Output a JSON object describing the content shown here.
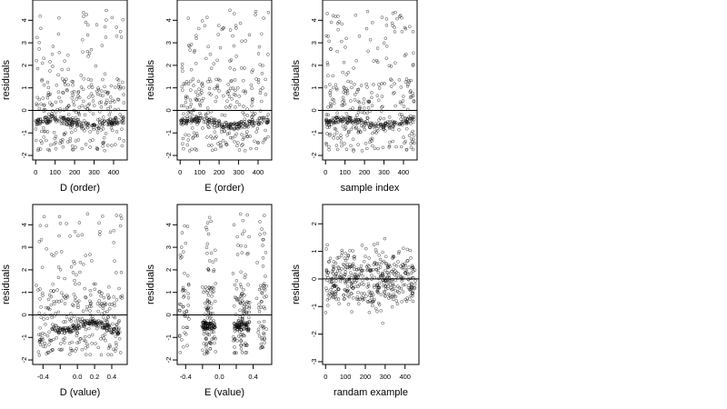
{
  "colors": {
    "point": "#000000",
    "axis": "#000000",
    "background": "#ffffff"
  },
  "chart_data": [
    {
      "type": "scatter",
      "xlabel": "D (order)",
      "ylabel": "residuals",
      "xlim": [
        -15,
        470
      ],
      "ylim": [
        -2.2,
        4.9
      ],
      "xticks": [
        0,
        100,
        200,
        300,
        400
      ],
      "xtick_labels": [
        "0",
        "100",
        "200",
        "300",
        "400"
      ],
      "yticks": [
        -2,
        -1,
        0,
        1,
        2,
        3,
        4
      ],
      "ytick_labels": [
        "-2",
        "-1",
        "0",
        "1",
        "2",
        "3",
        "4"
      ],
      "hline": 0,
      "grid": false,
      "legend": "none",
      "pattern": "order"
    },
    {
      "type": "scatter",
      "xlabel": "E (order)",
      "ylabel": "residuals",
      "xlim": [
        -15,
        470
      ],
      "ylim": [
        -2.2,
        4.9
      ],
      "xticks": [
        0,
        100,
        200,
        300,
        400
      ],
      "xtick_labels": [
        "0",
        "100",
        "200",
        "300",
        "400"
      ],
      "yticks": [
        -2,
        -1,
        0,
        1,
        2,
        3,
        4
      ],
      "ytick_labels": [
        "-2",
        "-1",
        "0",
        "1",
        "2",
        "3",
        "4"
      ],
      "hline": 0,
      "grid": false,
      "legend": "none",
      "pattern": "order"
    },
    {
      "type": "scatter",
      "xlabel": "sample index",
      "ylabel": "residuals",
      "xlim": [
        -15,
        470
      ],
      "ylim": [
        -2.2,
        4.9
      ],
      "xticks": [
        0,
        100,
        200,
        300,
        400
      ],
      "xtick_labels": [
        "0",
        "100",
        "200",
        "300",
        "400"
      ],
      "yticks": [
        -2,
        -1,
        0,
        1,
        2,
        3,
        4
      ],
      "ytick_labels": [
        "-2",
        "-1",
        "0",
        "1",
        "2",
        "3",
        "4"
      ],
      "hline": 0,
      "grid": false,
      "legend": "none",
      "pattern": "index"
    },
    {
      "type": "scatter",
      "xlabel": "D (value)",
      "ylabel": "residuals",
      "xlim": [
        -0.52,
        0.58
      ],
      "ylim": [
        -2.2,
        4.9
      ],
      "xticks": [
        -0.4,
        -0.2,
        0.0,
        0.2,
        0.4
      ],
      "xtick_labels": [
        "-0.4",
        "",
        "0.0",
        "0.2",
        "0.4"
      ],
      "yticks": [
        -2,
        -1,
        0,
        1,
        2,
        3,
        4
      ],
      "ytick_labels": [
        "-2",
        "-1",
        "0",
        "1",
        "2",
        "3",
        "4"
      ],
      "hline": 0,
      "grid": false,
      "legend": "none",
      "pattern": "dvalue"
    },
    {
      "type": "scatter",
      "xlabel": "E (value)",
      "ylabel": "residuals",
      "xlim": [
        -0.5,
        0.62
      ],
      "ylim": [
        -2.2,
        4.9
      ],
      "xticks": [
        -0.4,
        -0.2,
        0.0,
        0.2,
        0.4
      ],
      "xtick_labels": [
        "-0.4",
        "",
        "0.0",
        "",
        "0.4"
      ],
      "yticks": [
        -2,
        -1,
        0,
        1,
        2,
        3,
        4
      ],
      "ytick_labels": [
        "-2",
        "-1",
        "0",
        "1",
        "2",
        "3",
        "4"
      ],
      "hline": 0,
      "grid": false,
      "legend": "none",
      "pattern": "evalue"
    },
    {
      "type": "scatter",
      "xlabel": "randam example",
      "ylabel": "residuals",
      "xlim": [
        -15,
        470
      ],
      "ylim": [
        -3.1,
        2.7
      ],
      "xticks": [
        0,
        100,
        200,
        300,
        400
      ],
      "xtick_labels": [
        "0",
        "100",
        "200",
        "300",
        "400"
      ],
      "yticks": [
        -3,
        -2,
        -1,
        0,
        1,
        2
      ],
      "ytick_labels": [
        "-3",
        "-2",
        "-1",
        "0",
        "1",
        "2"
      ],
      "hline": 0,
      "grid": false,
      "legend": "none",
      "pattern": "random"
    }
  ]
}
